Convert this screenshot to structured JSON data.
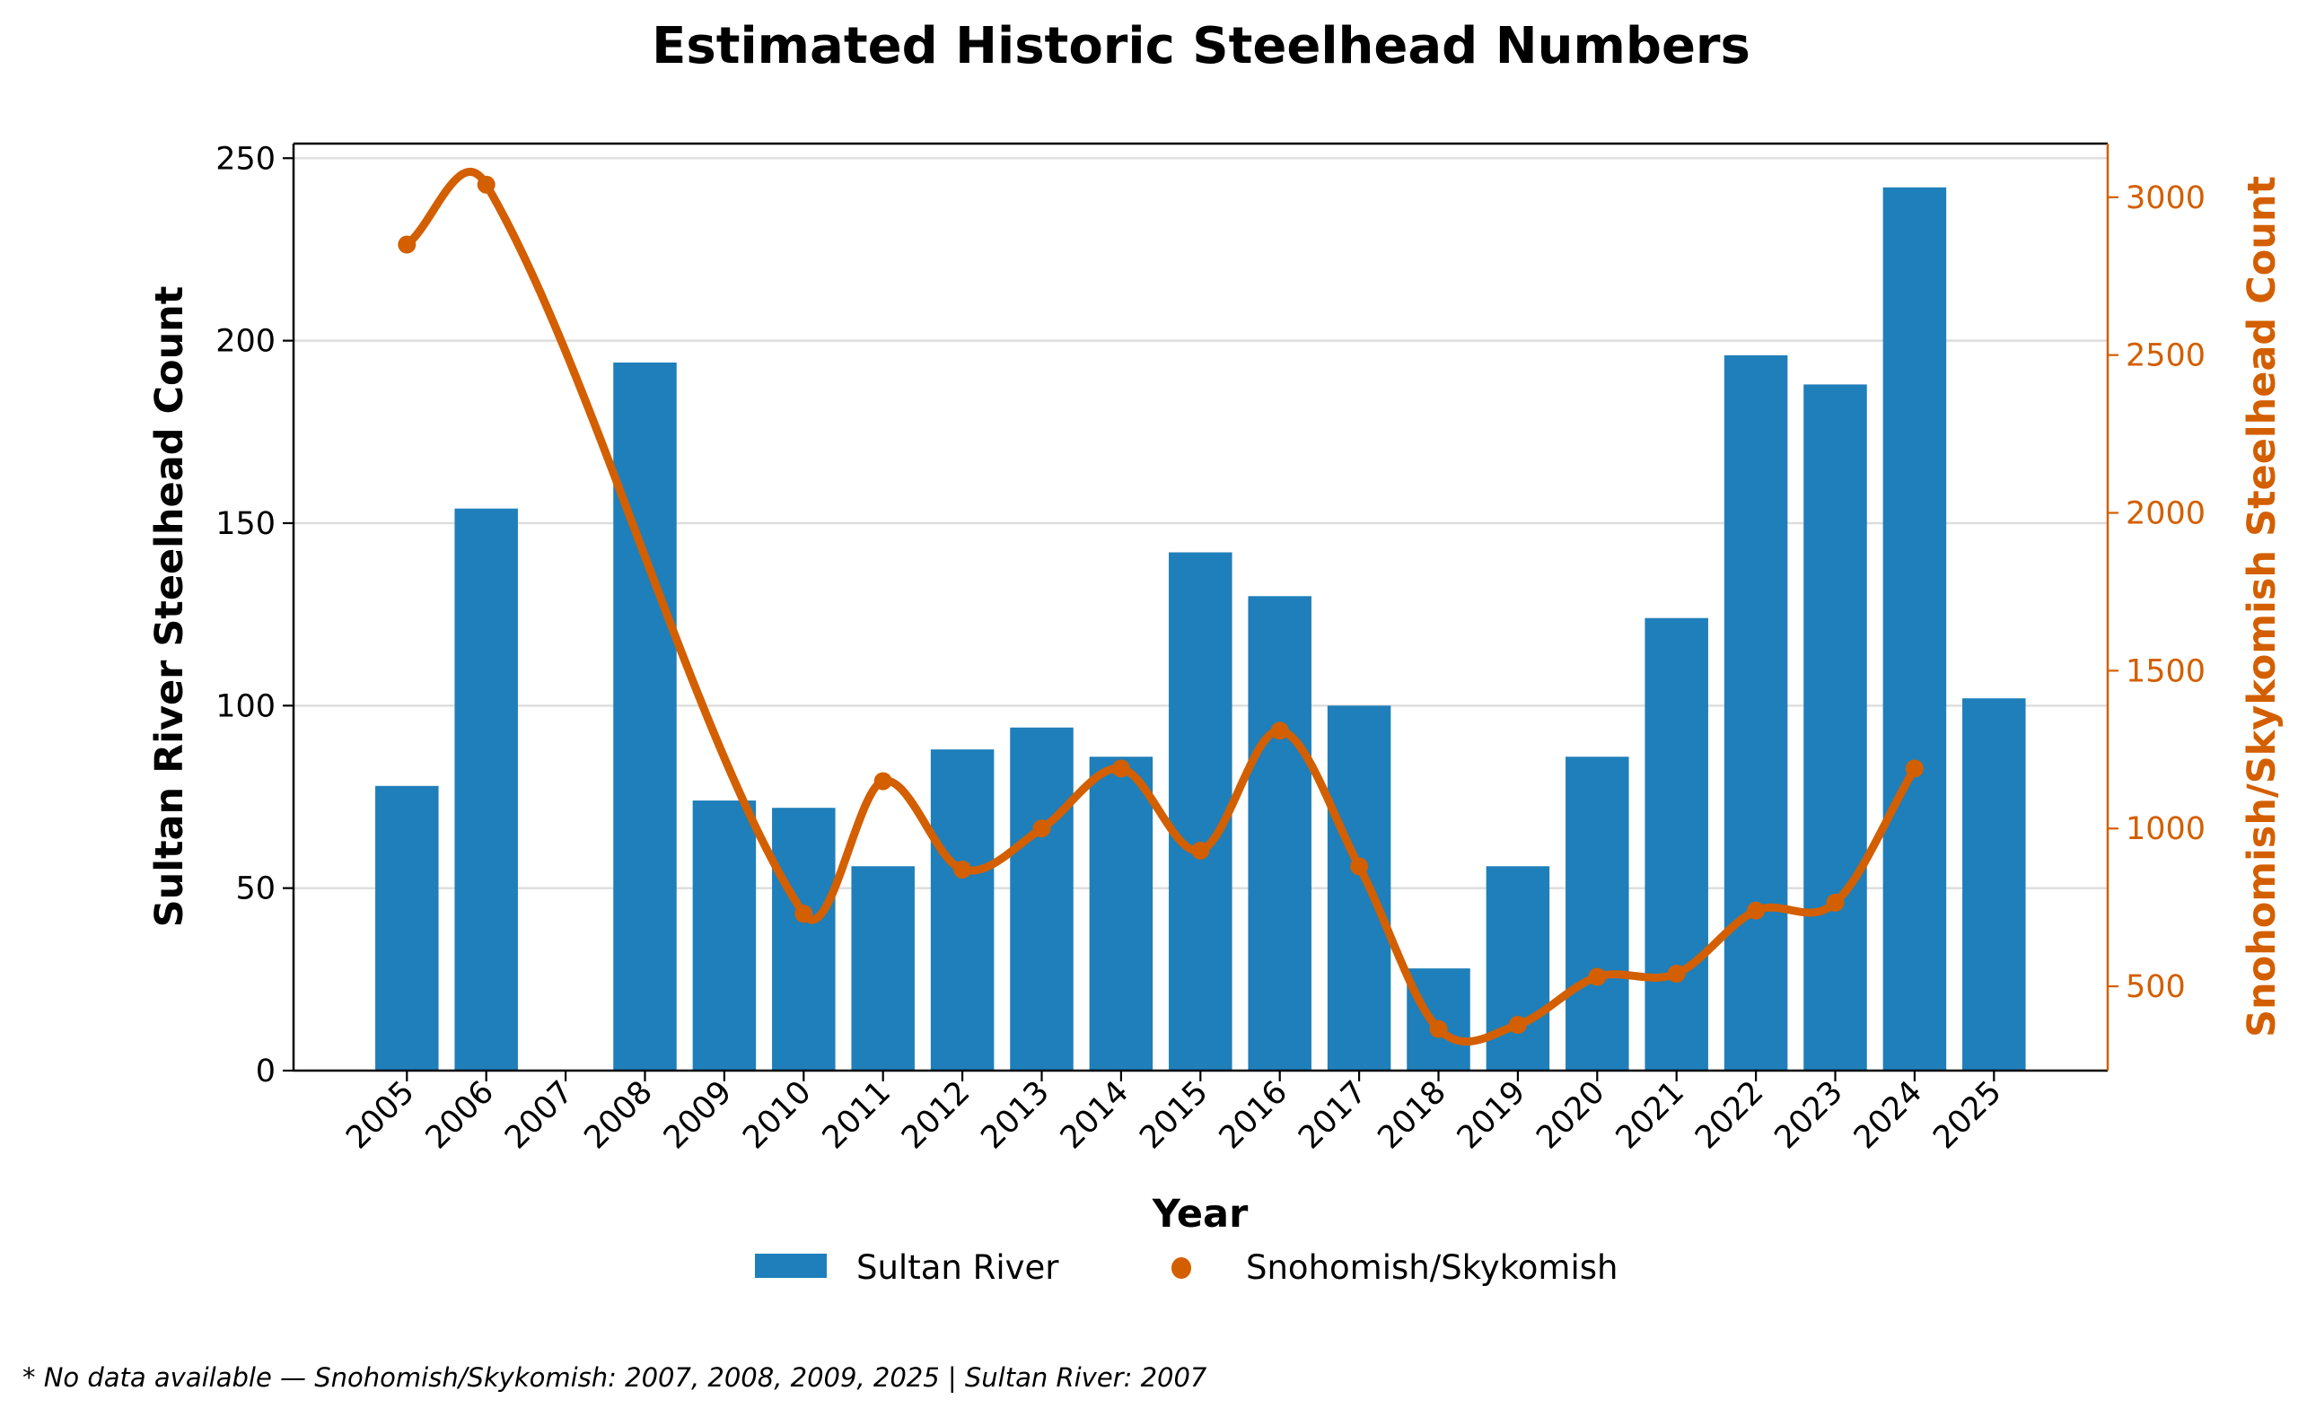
{
  "chart_data": {
    "type": "bar",
    "title": "Estimated Historic Steelhead Numbers",
    "xlabel": "Year",
    "ylabel": "Sultan River Steelhead Count",
    "ylabel_right": "Snohomish/Skykomish Steelhead Count",
    "categories": [
      "2005",
      "2006",
      "2007",
      "2008",
      "2009",
      "2010",
      "2011",
      "2012",
      "2013",
      "2014",
      "2015",
      "2016",
      "2017",
      "2018",
      "2019",
      "2020",
      "2021",
      "2022",
      "2023",
      "2024",
      "2025"
    ],
    "ylim": [
      0,
      254
    ],
    "ylim_right": [
      233,
      3170
    ],
    "yticks": [
      0,
      50,
      100,
      150,
      200,
      250
    ],
    "yticks_right": [
      500,
      1000,
      1500,
      2000,
      2500,
      3000
    ],
    "grid": true,
    "legend_position": "bottom-center",
    "series": [
      {
        "name": "Sultan River",
        "type": "bar",
        "axis": "left",
        "color": "#1f7fba",
        "values": [
          78,
          154,
          null,
          194,
          74,
          72,
          56,
          88,
          94,
          86,
          142,
          130,
          100,
          28,
          56,
          86,
          124,
          196,
          188,
          242,
          102
        ]
      },
      {
        "name": "Snohomish/Skykomish",
        "type": "line",
        "smooth": true,
        "axis": "right",
        "color": "#d35f00",
        "values": [
          2850,
          3040,
          null,
          null,
          null,
          730,
          1150,
          870,
          1000,
          1190,
          930,
          1310,
          880,
          365,
          378,
          530,
          540,
          740,
          765,
          1190,
          null
        ]
      }
    ],
    "footnote": "* No data available — Snohomish/Skykomish: 2007, 2008, 2009, 2025 | Sultan River: 2007"
  },
  "colors": {
    "bar": "#1f7fba",
    "line": "#d35f00",
    "axis": "#000000",
    "right_axis": "#d35f00",
    "grid": "#dddddd"
  }
}
